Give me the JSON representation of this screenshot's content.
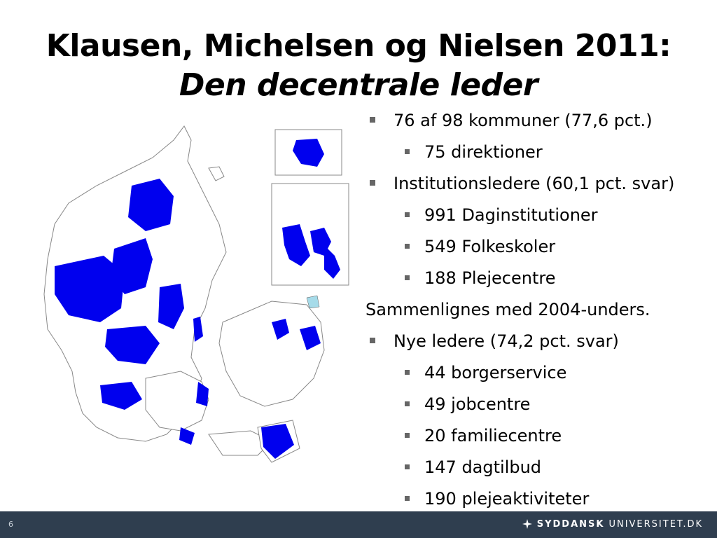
{
  "slide": {
    "title_line1": "Klausen, Michelsen og Nielsen 2011:",
    "title_line2": "Den decentrale leder",
    "page_number": "6"
  },
  "bullets": [
    {
      "level": 1,
      "text": "76 af 98 kommuner (77,6 pct.)"
    },
    {
      "level": 2,
      "text": "75 direktioner"
    },
    {
      "level": 1,
      "text": "Institutionsledere (60,1 pct. svar)"
    },
    {
      "level": 2,
      "text": "991 Daginstitutioner"
    },
    {
      "level": 2,
      "text": "549 Folkeskoler"
    },
    {
      "level": 2,
      "text": "188 Plejecentre"
    },
    {
      "level": 0,
      "text": "Sammenlignes med 2004-unders."
    },
    {
      "level": 1,
      "text": "Nye ledere (74,2 pct. svar)"
    },
    {
      "level": 2,
      "text": "44 borgerservice"
    },
    {
      "level": 2,
      "text": "49 jobcentre"
    },
    {
      "level": 2,
      "text": "20 familiecentre"
    },
    {
      "level": 2,
      "text": "147 dagtilbud"
    },
    {
      "level": 2,
      "text": "190 plejeaktiviteter"
    }
  ],
  "footer": {
    "logo_bold": "SYDDANSK",
    "logo_thin": "UNIVERSITET.DK"
  },
  "colors": {
    "highlight": "#0000ee",
    "footer_bg": "#2f3e4f",
    "bullet": "#666666"
  }
}
